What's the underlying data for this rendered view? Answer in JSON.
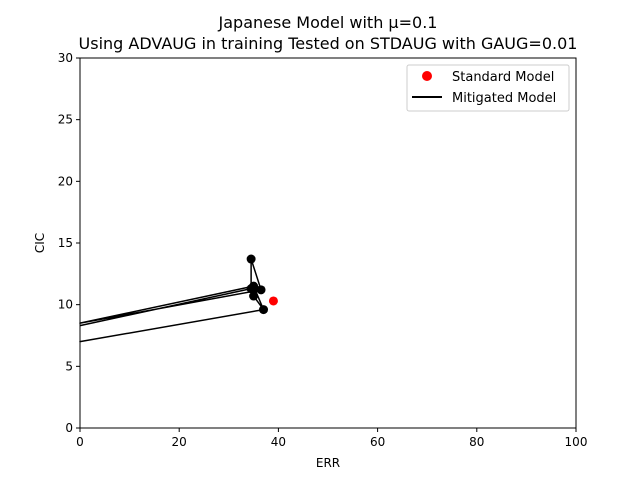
{
  "chart_data": {
    "type": "scatter",
    "title_line1": "Japanese Model with μ=0.1",
    "title_line2": "Using ADVAUG in training Tested on STDAUG with GAUG=0.01",
    "xlabel": "ERR",
    "ylabel": "CIC",
    "xlim": [
      0,
      100
    ],
    "ylim": [
      0,
      30
    ],
    "xticks": [
      0,
      20,
      40,
      60,
      80,
      100
    ],
    "yticks": [
      0,
      5,
      10,
      15,
      20,
      25,
      30
    ],
    "grid": false,
    "legend_position": "upper-right",
    "standard_model": {
      "name": "Standard Model",
      "color": "#ff0000",
      "points": [
        {
          "x": 39.0,
          "y": 10.3
        }
      ]
    },
    "mitigated_model": {
      "name": "Mitigated Model",
      "color": "#000000",
      "points": [
        {
          "x": 0,
          "y": 8.3
        },
        {
          "x": 34.5,
          "y": 11.3
        },
        {
          "x": 34.5,
          "y": 13.7
        },
        {
          "x": 36.5,
          "y": 11.2
        },
        {
          "x": 0,
          "y": 8.5
        },
        {
          "x": 35.0,
          "y": 11.5
        },
        {
          "x": 37.0,
          "y": 9.6
        },
        {
          "x": 0,
          "y": 7.0
        },
        {
          "x": 37.0,
          "y": 9.6
        },
        {
          "x": 35.0,
          "y": 10.7
        },
        {
          "x": 35.2,
          "y": 11.3
        }
      ],
      "markers": [
        {
          "x": 34.5,
          "y": 13.7
        },
        {
          "x": 34.5,
          "y": 11.3
        },
        {
          "x": 35.0,
          "y": 11.5
        },
        {
          "x": 35.2,
          "y": 11.3
        },
        {
          "x": 36.5,
          "y": 11.2
        },
        {
          "x": 35.0,
          "y": 10.7
        },
        {
          "x": 37.0,
          "y": 9.6
        }
      ]
    }
  }
}
